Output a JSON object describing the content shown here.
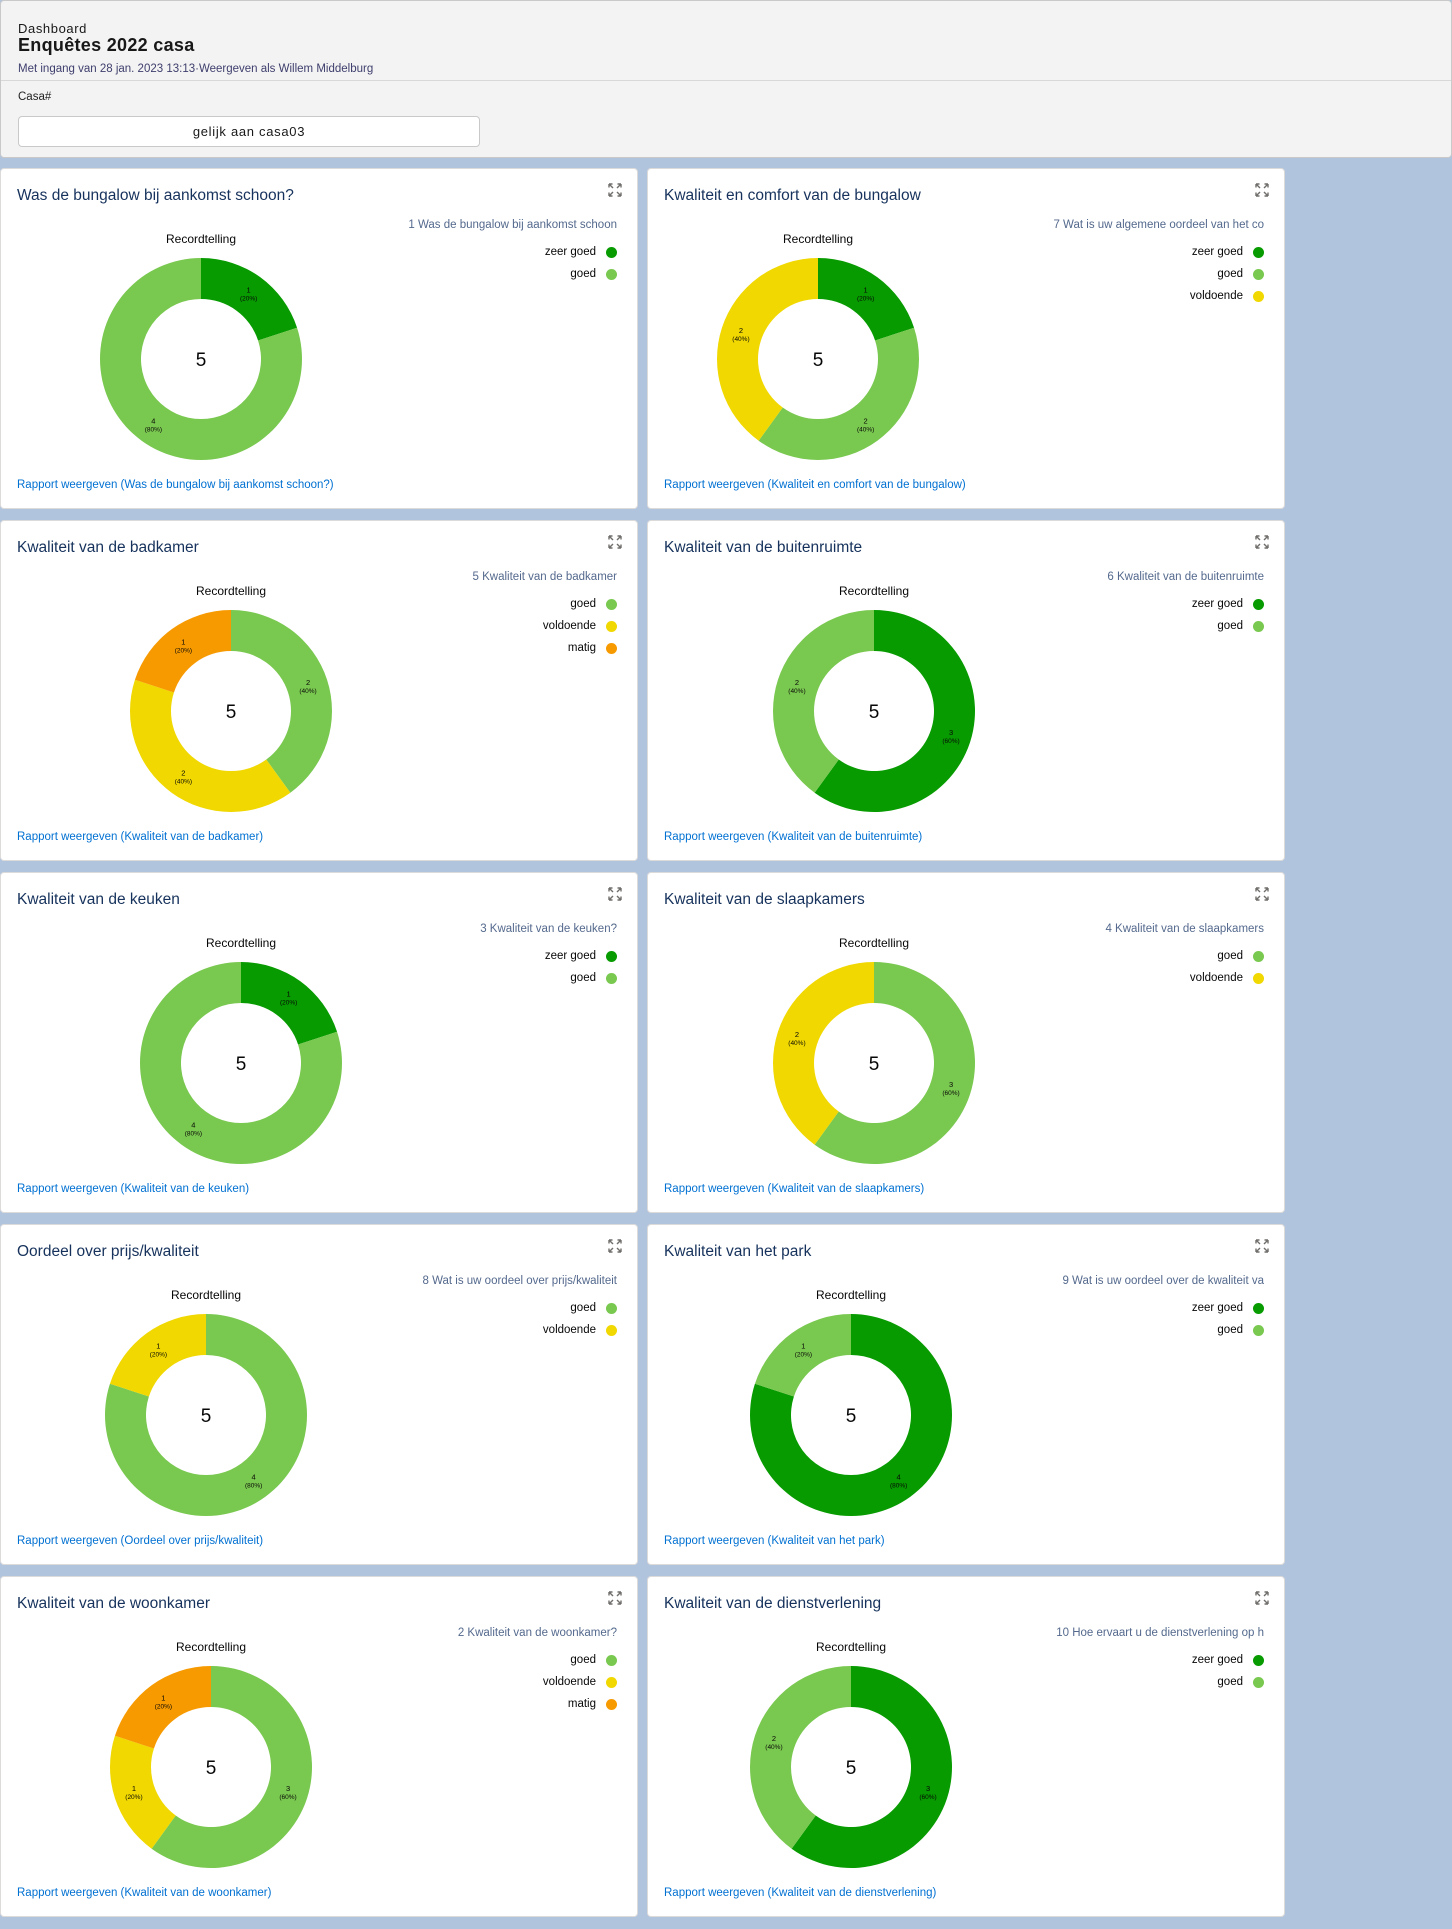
{
  "header": {
    "breadcrumb": "Dashboard",
    "title": "Enquêtes 2022 casa",
    "subtitle": "Met ingang van 28 jan. 2023 13:13·Weergeven als Willem Middelburg",
    "filter_label": "Casa#",
    "filter_value": "gelijk aan casa03"
  },
  "colors": {
    "zeer goed": "#079b00",
    "goed": "#79c84f",
    "voldoende": "#f0d800",
    "matig": "#f79a00"
  },
  "cards": [
    {
      "title": "Was de bungalow bij aankomst schoon?",
      "legend_title": "1 Was de bungalow bij aankomst schoon",
      "donut_label": "Recordtelling",
      "total": "5",
      "link": "Rapport weergeven (Was de bungalow bij aankomst schoon?)",
      "chart_data": {
        "type": "pie",
        "categories": [
          "zeer goed",
          "goed"
        ],
        "values": [
          1,
          4
        ],
        "labels": [
          "(20%)",
          "(80%)"
        ]
      }
    },
    {
      "title": "Kwaliteit en comfort van de bungalow",
      "legend_title": "7 Wat is uw  algemene oordeel van het co",
      "donut_label": "Recordtelling",
      "total": "5",
      "link": "Rapport weergeven (Kwaliteit en comfort van de bungalow)",
      "chart_data": {
        "type": "pie",
        "categories": [
          "zeer goed",
          "goed",
          "voldoende"
        ],
        "values": [
          1,
          2,
          2
        ],
        "labels": [
          "(20%)",
          "(40%)",
          "(40%)"
        ]
      }
    },
    {
      "title": "Kwaliteit van de badkamer",
      "legend_title": "5 Kwaliteit van de badkamer",
      "donut_label": "Recordtelling",
      "total": "5",
      "link": "Rapport weergeven (Kwaliteit van de badkamer)",
      "chart_data": {
        "type": "pie",
        "categories": [
          "goed",
          "voldoende",
          "matig"
        ],
        "values": [
          2,
          2,
          1
        ],
        "labels": [
          "(40%)",
          "(40%)",
          "(20%)"
        ]
      }
    },
    {
      "title": "Kwaliteit van de buitenruimte",
      "legend_title": "6 Kwaliteit van de buitenruimte",
      "donut_label": "Recordtelling",
      "total": "5",
      "link": "Rapport weergeven (Kwaliteit van de buitenruimte)",
      "chart_data": {
        "type": "pie",
        "categories": [
          "zeer goed",
          "goed"
        ],
        "values": [
          3,
          2
        ],
        "labels": [
          "(60%)",
          "(40%)"
        ]
      }
    },
    {
      "title": "Kwaliteit van de keuken",
      "legend_title": "3 Kwaliteit van de keuken?",
      "donut_label": "Recordtelling",
      "total": "5",
      "link": "Rapport weergeven (Kwaliteit van de keuken)",
      "chart_data": {
        "type": "pie",
        "categories": [
          "zeer goed",
          "goed"
        ],
        "values": [
          1,
          4
        ],
        "labels": [
          "(20%)",
          "(80%)"
        ]
      }
    },
    {
      "title": "Kwaliteit van de slaapkamers",
      "legend_title": "4 Kwaliteit van de slaapkamers",
      "donut_label": "Recordtelling",
      "total": "5",
      "link": "Rapport weergeven (Kwaliteit van de slaapkamers)",
      "chart_data": {
        "type": "pie",
        "categories": [
          "goed",
          "voldoende"
        ],
        "values": [
          3,
          2
        ],
        "labels": [
          "(60%)",
          "(40%)"
        ]
      }
    },
    {
      "title": "Oordeel over prijs/kwaliteit",
      "legend_title": "8 Wat is uw oordeel over prijs/kwaliteit",
      "donut_label": "Recordtelling",
      "total": "5",
      "link": "Rapport weergeven (Oordeel over prijs/kwaliteit)",
      "chart_data": {
        "type": "pie",
        "categories": [
          "goed",
          "voldoende"
        ],
        "values": [
          4,
          1
        ],
        "labels": [
          "(80%)",
          "(20%)"
        ]
      }
    },
    {
      "title": "Kwaliteit van het park",
      "legend_title": "9 Wat is uw oordeel over de kwaliteit va",
      "donut_label": "Recordtelling",
      "total": "5",
      "link": "Rapport weergeven (Kwaliteit van het park)",
      "chart_data": {
        "type": "pie",
        "categories": [
          "zeer goed",
          "goed"
        ],
        "values": [
          4,
          1
        ],
        "labels": [
          "(80%)",
          "(20%)"
        ]
      }
    },
    {
      "title": "Kwaliteit van de woonkamer",
      "legend_title": "2 Kwaliteit van de woonkamer?",
      "donut_label": "Recordtelling",
      "total": "5",
      "link": "Rapport weergeven (Kwaliteit van de woonkamer)",
      "chart_data": {
        "type": "pie",
        "categories": [
          "goed",
          "voldoende",
          "matig"
        ],
        "values": [
          3,
          1,
          1
        ],
        "labels": [
          "(60%)",
          "(20%)",
          "(20%)"
        ]
      }
    },
    {
      "title": "Kwaliteit van de dienstverlening",
      "legend_title": "10 Hoe ervaart u de dienstverlening op h",
      "donut_label": "Recordtelling",
      "total": "5",
      "link": "Rapport weergeven (Kwaliteit van de dienstverlening)",
      "chart_data": {
        "type": "pie",
        "categories": [
          "zeer goed",
          "goed"
        ],
        "values": [
          3,
          2
        ],
        "labels": [
          "(60%)",
          "(40%)"
        ]
      }
    }
  ]
}
